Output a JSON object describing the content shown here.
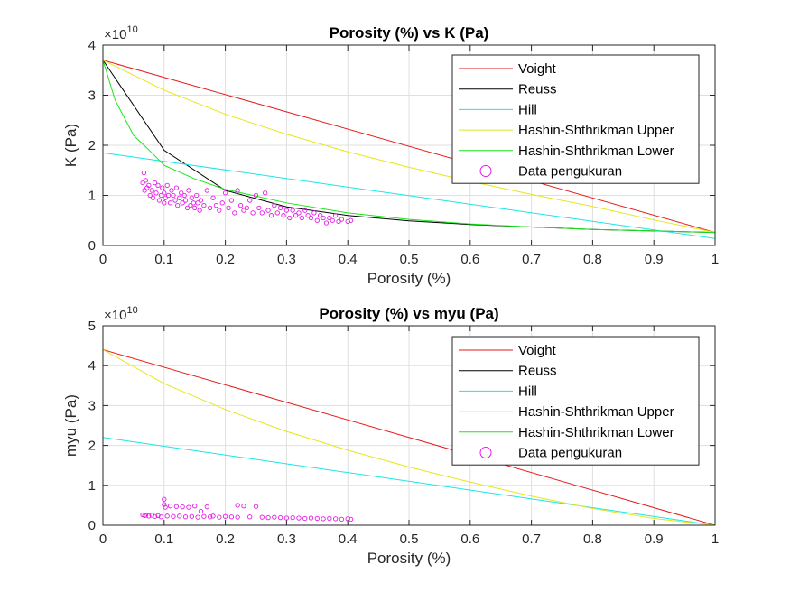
{
  "chart_data": [
    {
      "type": "line",
      "title": "Porosity (%) vs K (Pa)",
      "xlabel": "Porosity (%)",
      "ylabel": "K (Pa)",
      "y_exponent_label": "×10",
      "y_exponent": "10",
      "xlim": [
        0,
        1
      ],
      "ylim": [
        0,
        40000000000.0
      ],
      "xticks": [
        "0",
        "0.1",
        "0.2",
        "0.3",
        "0.4",
        "0.5",
        "0.6",
        "0.7",
        "0.8",
        "0.9",
        "1"
      ],
      "yticks": [
        "0",
        "1",
        "2",
        "3",
        "4"
      ],
      "grid": true,
      "legend_position": "top-right",
      "series": [
        {
          "name": "Voight",
          "color": "#e61a1a",
          "x": [
            0,
            1
          ],
          "y": [
            37000000000.0,
            2600000000.0
          ]
        },
        {
          "name": "Reuss",
          "color": "#000000",
          "x": [
            0,
            0.1,
            0.2,
            0.3,
            0.4,
            0.5,
            0.6,
            0.7,
            0.8,
            0.9,
            1
          ],
          "y": [
            37000000000.0,
            19000000000.0,
            11000000000.0,
            7700000000.0,
            6000000000.0,
            4900000000.0,
            4200000000.0,
            3700000000.0,
            3200000000.0,
            2900000000.0,
            2600000000.0
          ]
        },
        {
          "name": "Hill",
          "color": "#1ae6e6",
          "x": [
            0,
            1
          ],
          "y": [
            18500000000.0,
            1400000000.0
          ]
        },
        {
          "name": "Hashin-Shthrikman Upper",
          "color": "#e6e61a",
          "x": [
            0,
            0.1,
            0.2,
            0.3,
            0.4,
            0.5,
            0.6,
            0.7,
            0.8,
            0.9,
            1
          ],
          "y": [
            37000000000.0,
            31000000000.0,
            26200000000.0,
            22200000000.0,
            18700000000.0,
            15600000000.0,
            12800000000.0,
            10200000000.0,
            7800000000.0,
            5100000000.0,
            2600000000.0
          ]
        },
        {
          "name": "Hashin-Shthrikman Lower",
          "color": "#1ae61a",
          "x": [
            0,
            0.02,
            0.05,
            0.08,
            0.1,
            0.15,
            0.2,
            0.3,
            0.4,
            0.5,
            0.6,
            0.7,
            0.8,
            0.9,
            1
          ],
          "y": [
            37000000000.0,
            29000000000.0,
            22000000000.0,
            18500000000.0,
            16000000000.0,
            13300000000.0,
            11200000000.0,
            8500000000.0,
            6500000000.0,
            5200000000.0,
            4300000000.0,
            3700000000.0,
            3200000000.0,
            2900000000.0,
            2600000000.0
          ]
        }
      ],
      "scatter": {
        "name": "Data pengukuran",
        "color": "#e61ae6",
        "x": [
          0.065,
          0.067,
          0.068,
          0.07,
          0.072,
          0.075,
          0.077,
          0.08,
          0.082,
          0.085,
          0.087,
          0.09,
          0.092,
          0.095,
          0.097,
          0.1,
          0.1,
          0.102,
          0.105,
          0.107,
          0.11,
          0.112,
          0.115,
          0.118,
          0.12,
          0.122,
          0.125,
          0.128,
          0.13,
          0.133,
          0.135,
          0.138,
          0.14,
          0.143,
          0.145,
          0.148,
          0.15,
          0.153,
          0.155,
          0.158,
          0.16,
          0.165,
          0.17,
          0.175,
          0.18,
          0.185,
          0.19,
          0.195,
          0.2,
          0.205,
          0.21,
          0.215,
          0.22,
          0.225,
          0.23,
          0.235,
          0.24,
          0.245,
          0.25,
          0.255,
          0.26,
          0.265,
          0.27,
          0.275,
          0.28,
          0.285,
          0.29,
          0.295,
          0.3,
          0.305,
          0.31,
          0.315,
          0.32,
          0.325,
          0.33,
          0.335,
          0.34,
          0.345,
          0.35,
          0.355,
          0.36,
          0.365,
          0.37,
          0.375,
          0.38,
          0.385,
          0.39,
          0.4,
          0.405
        ],
        "y": [
          12500000000.0,
          14500000000.0,
          11000000000.0,
          13000000000.0,
          11500000000.0,
          12000000000.0,
          10000000000.0,
          11000000000.0,
          9500000000.0,
          12500000000.0,
          10500000000.0,
          12000000000.0,
          9000000000.0,
          10000000000.0,
          11500000000.0,
          10500000000.0,
          8500000000.0,
          9500000000.0,
          12000000000.0,
          10000000000.0,
          8500000000.0,
          11000000000.0,
          10000000000.0,
          9000000000.0,
          11500000000.0,
          8000000000.0,
          9500000000.0,
          10500000000.0,
          8500000000.0,
          10000000000.0,
          9000000000.0,
          7500000000.0,
          11000000000.0,
          8000000000.0,
          9500000000.0,
          8500000000.0,
          7500000000.0,
          10000000000.0,
          8500000000.0,
          7000000000.0,
          9000000000.0,
          8000000000.0,
          11000000000.0,
          7500000000.0,
          9500000000.0,
          8000000000.0,
          7000000000.0,
          8500000000.0,
          10500000000.0,
          7500000000.0,
          9000000000.0,
          6500000000.0,
          11000000000.0,
          8000000000.0,
          7000000000.0,
          7500000000.0,
          9000000000.0,
          6500000000.0,
          10000000000.0,
          7500000000.0,
          6500000000.0,
          10500000000.0,
          7000000000.0,
          6000000000.0,
          8000000000.0,
          6500000000.0,
          7500000000.0,
          6000000000.0,
          7000000000.0,
          5500000000.0,
          7000000000.0,
          6000000000.0,
          6500000000.0,
          5500000000.0,
          7000000000.0,
          6000000000.0,
          5500000000.0,
          6500000000.0,
          5000000000.0,
          6000000000.0,
          5500000000.0,
          4500000000.0,
          5500000000.0,
          5000000000.0,
          6000000000.0,
          4800000000.0,
          5200000000.0,
          4800000000.0,
          5000000000.0
        ]
      }
    },
    {
      "type": "line",
      "title": "Porosity (%) vs myu (Pa)",
      "xlabel": "Porosity (%)",
      "ylabel": "myu (Pa)",
      "y_exponent_label": "×10",
      "y_exponent": "10",
      "xlim": [
        0,
        1
      ],
      "ylim": [
        0,
        50000000000.0
      ],
      "xticks": [
        "0",
        "0.1",
        "0.2",
        "0.3",
        "0.4",
        "0.5",
        "0.6",
        "0.7",
        "0.8",
        "0.9",
        "1"
      ],
      "yticks": [
        "0",
        "1",
        "2",
        "3",
        "4",
        "5"
      ],
      "grid": true,
      "legend_position": "top-right",
      "series": [
        {
          "name": "Voight",
          "color": "#e61a1a",
          "x": [
            0,
            1
          ],
          "y": [
            44000000000.0,
            0
          ]
        },
        {
          "name": "Reuss",
          "color": "#000000",
          "x": [
            0,
            1
          ],
          "y": [
            0,
            0
          ]
        },
        {
          "name": "Hill",
          "color": "#1ae6e6",
          "x": [
            0,
            1
          ],
          "y": [
            22000000000.0,
            0
          ]
        },
        {
          "name": "Hashin-Shthrikman Upper",
          "color": "#e6e61a",
          "x": [
            0,
            0.1,
            0.2,
            0.3,
            0.4,
            0.5,
            0.6,
            0.7,
            0.8,
            0.9,
            1
          ],
          "y": [
            44000000000.0,
            35500000000.0,
            29000000000.0,
            23500000000.0,
            18800000000.0,
            14600000000.0,
            10800000000.0,
            7300000000.0,
            4200000000.0,
            1700000000.0,
            0
          ]
        },
        {
          "name": "Hashin-Shthrikman Lower",
          "color": "#1ae61a",
          "x": [
            0,
            1
          ],
          "y": [
            0,
            0
          ]
        }
      ],
      "scatter": {
        "name": "Data pengukuran",
        "color": "#e61ae6",
        "x": [
          0.065,
          0.068,
          0.07,
          0.075,
          0.08,
          0.085,
          0.09,
          0.095,
          0.1,
          0.1,
          0.102,
          0.105,
          0.11,
          0.115,
          0.12,
          0.125,
          0.13,
          0.135,
          0.14,
          0.145,
          0.15,
          0.155,
          0.16,
          0.165,
          0.17,
          0.175,
          0.18,
          0.19,
          0.2,
          0.21,
          0.22,
          0.22,
          0.23,
          0.24,
          0.25,
          0.26,
          0.27,
          0.28,
          0.29,
          0.3,
          0.31,
          0.32,
          0.33,
          0.34,
          0.35,
          0.36,
          0.37,
          0.38,
          0.39,
          0.4,
          0.405
        ],
        "y": [
          2600000000.0,
          2400000000.0,
          2500000000.0,
          2300000000.0,
          2500000000.0,
          2200000000.0,
          2400000000.0,
          2100000000.0,
          6500000000.0,
          5200000000.0,
          4500000000.0,
          2300000000.0,
          4800000000.0,
          2200000000.0,
          4700000000.0,
          2300000000.0,
          4600000000.0,
          2100000000.0,
          4500000000.0,
          2200000000.0,
          4800000000.0,
          2000000000.0,
          3500000000.0,
          2200000000.0,
          4600000000.0,
          2100000000.0,
          2300000000.0,
          2000000000.0,
          2200000000.0,
          2100000000.0,
          5000000000.0,
          2000000000.0,
          4800000000.0,
          2100000000.0,
          4700000000.0,
          2000000000.0,
          1900000000.0,
          2000000000.0,
          1900000000.0,
          1800000000.0,
          1900000000.0,
          1800000000.0,
          1700000000.0,
          1800000000.0,
          1700000000.0,
          1600000000.0,
          1700000000.0,
          1600000000.0,
          1500000000.0,
          1600000000.0,
          1500000000.0
        ]
      }
    }
  ]
}
